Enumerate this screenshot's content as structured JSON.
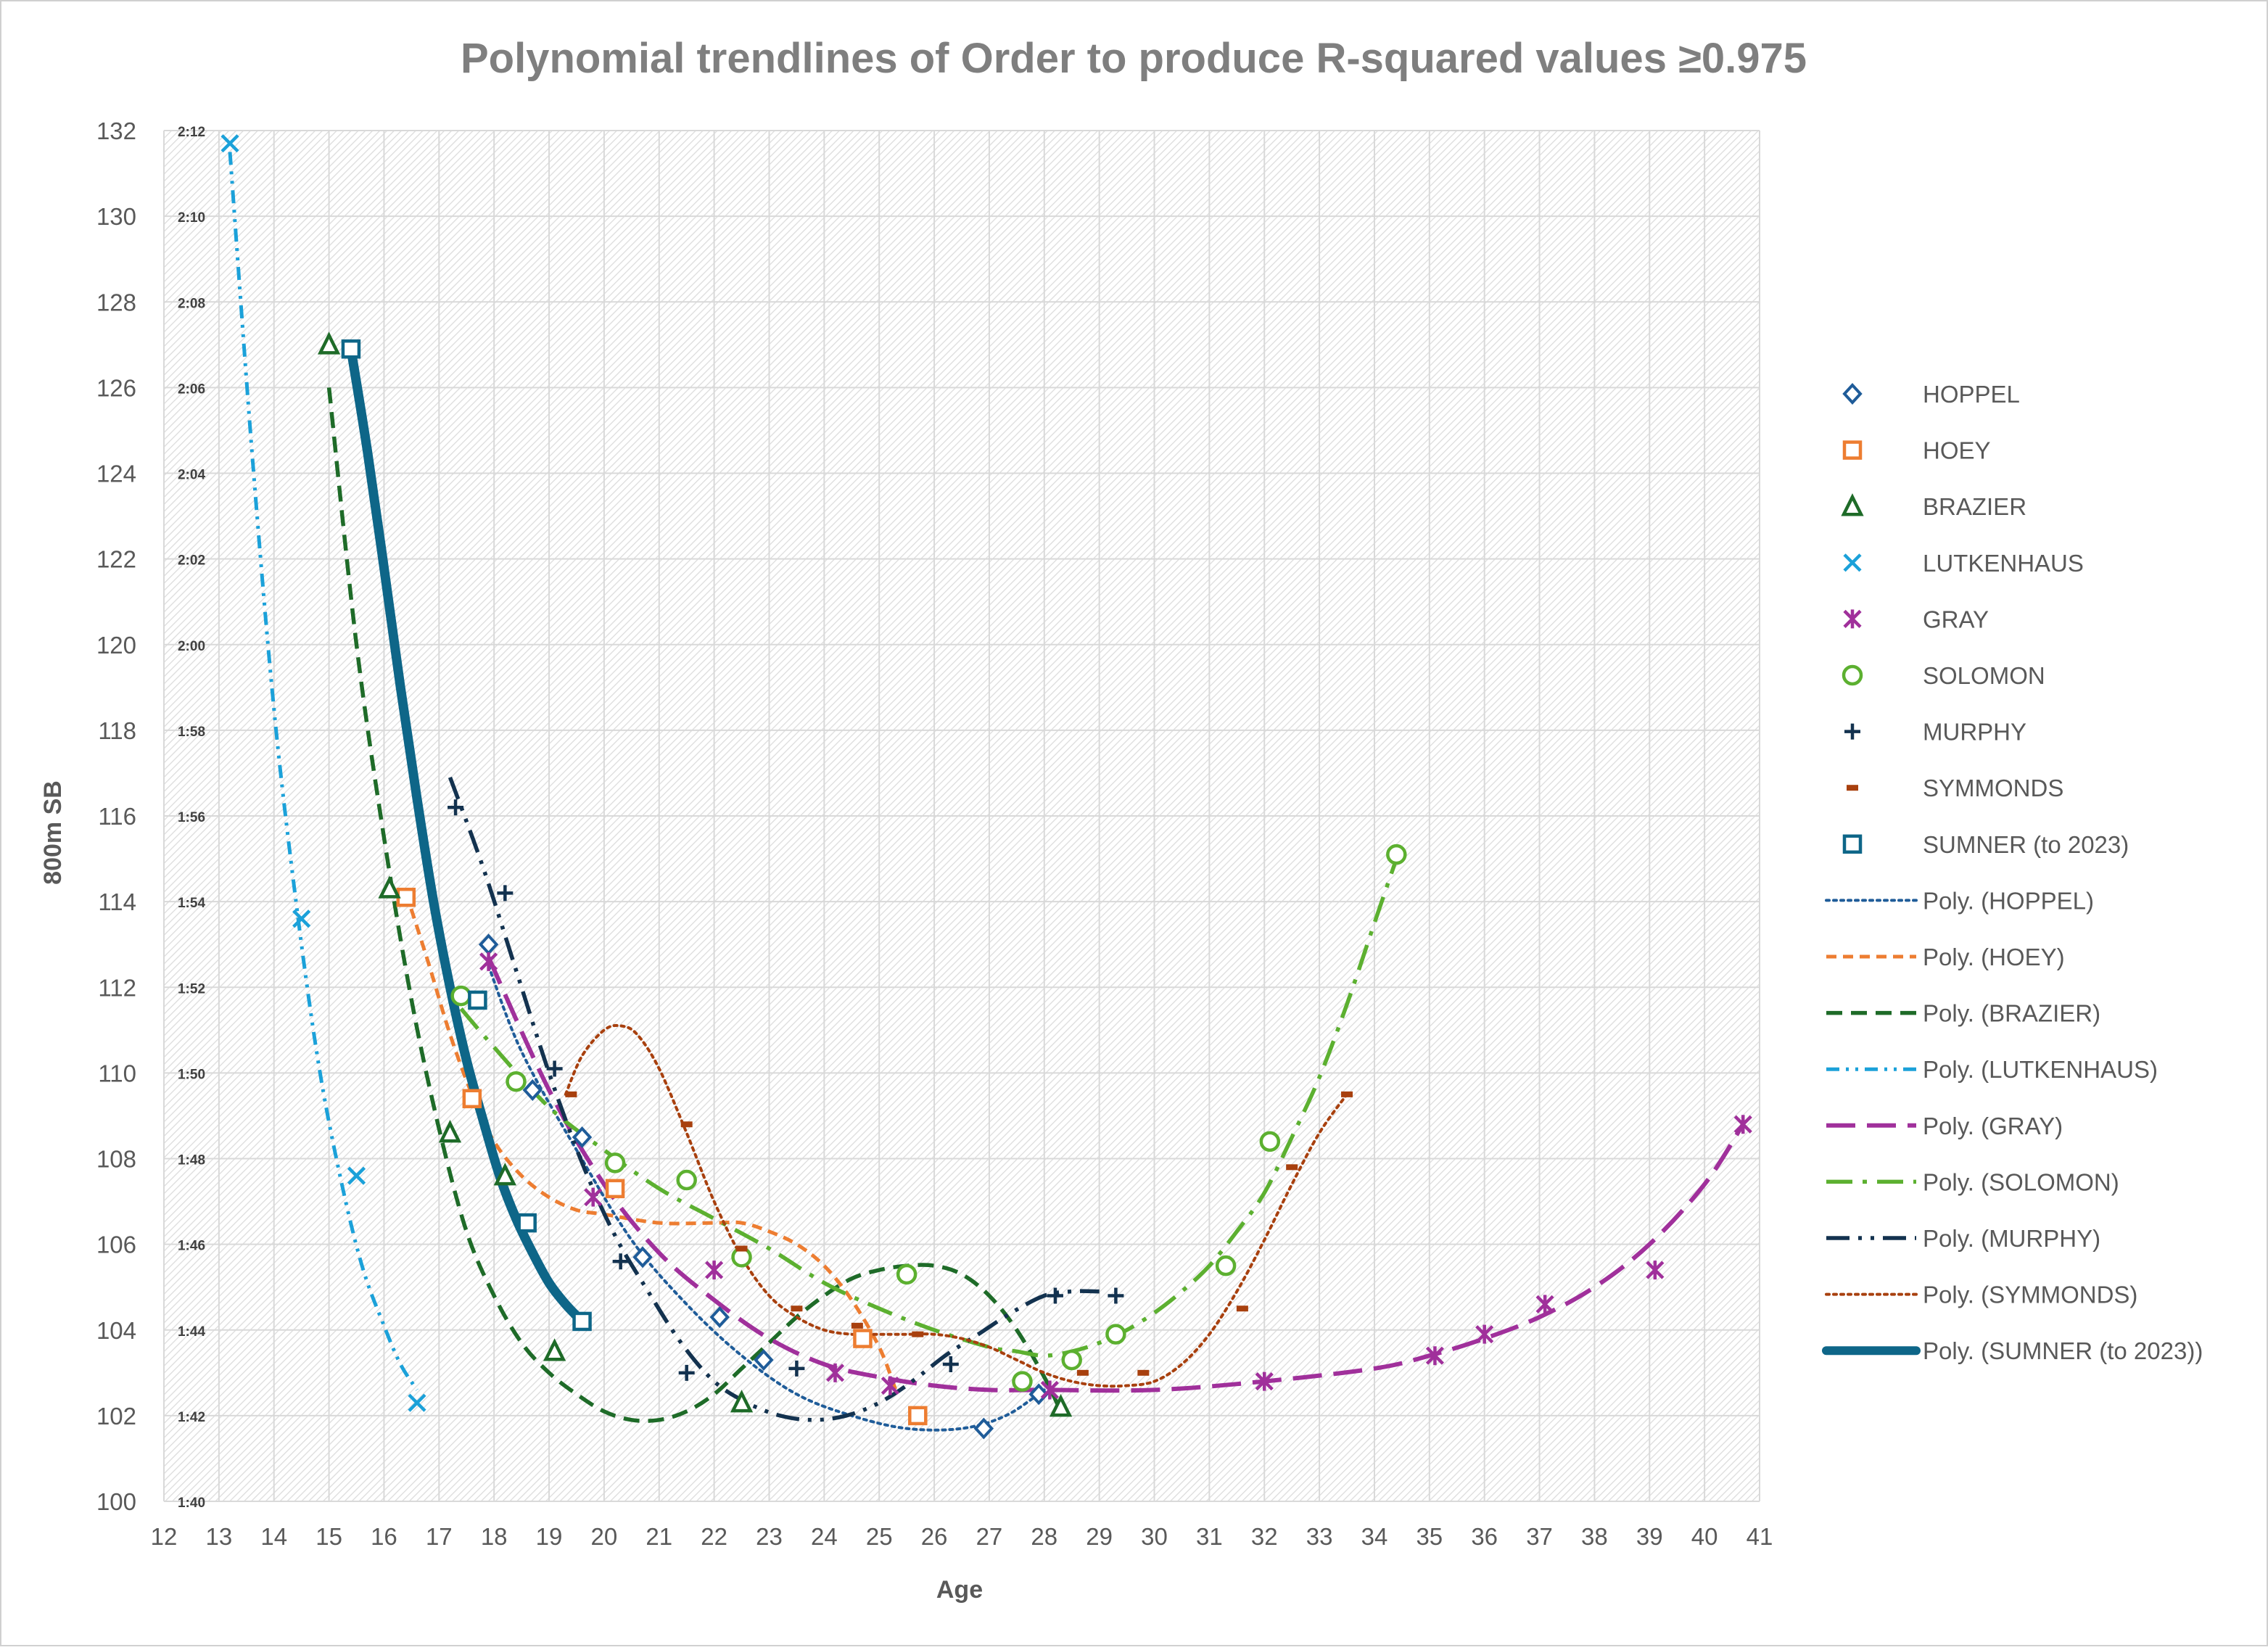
{
  "chart_data": {
    "type": "scatter",
    "title": "Polynomial trendlines of Order to produce R-squared values ≥0.975",
    "xlabel": "Age",
    "ylabel": "800m SB",
    "xlim": [
      12,
      41
    ],
    "ylim": [
      100,
      132
    ],
    "x_ticks": [
      12,
      13,
      14,
      15,
      16,
      17,
      18,
      19,
      20,
      21,
      22,
      23,
      24,
      25,
      26,
      27,
      28,
      29,
      30,
      31,
      32,
      33,
      34,
      35,
      36,
      37,
      38,
      39,
      40,
      41
    ],
    "y_ticks": [
      100,
      102,
      104,
      106,
      108,
      110,
      112,
      114,
      116,
      118,
      120,
      122,
      124,
      126,
      128,
      130,
      132
    ],
    "y_tick_labels": [
      "100",
      "102",
      "104",
      "106",
      "108",
      "110",
      "112",
      "114",
      "116",
      "118",
      "120",
      "122",
      "124",
      "126",
      "128",
      "130",
      "132"
    ],
    "y_time_labels": [
      "1:40",
      "1:42",
      "1:44",
      "1:46",
      "1:48",
      "1:50",
      "1:52",
      "1:54",
      "1:56",
      "1:58",
      "2:00",
      "2:02",
      "2:04",
      "2:06",
      "2:08",
      "2:10",
      "2:12"
    ],
    "grid": true,
    "legend_position": "right",
    "series": [
      {
        "name": "HOPPEL",
        "color": "#1F5C99",
        "marker": "diamond",
        "points": [
          [
            17.9,
            113.0
          ],
          [
            18.7,
            109.6
          ],
          [
            19.6,
            108.5
          ],
          [
            20.7,
            105.7
          ],
          [
            22.1,
            104.3
          ],
          [
            22.9,
            103.3
          ],
          [
            26.9,
            101.7
          ],
          [
            27.9,
            102.5
          ]
        ],
        "trend": [
          [
            17.9,
            112.5
          ],
          [
            18.5,
            110.5
          ],
          [
            19.5,
            108.2
          ],
          [
            20.5,
            106.1
          ],
          [
            21.5,
            104.6
          ],
          [
            22.5,
            103.4
          ],
          [
            23.5,
            102.5
          ],
          [
            24.5,
            102.0
          ],
          [
            25.5,
            101.7
          ],
          [
            26.5,
            101.7
          ],
          [
            27.3,
            102.0
          ],
          [
            28.0,
            102.6
          ]
        ],
        "trend_name": "Poly. (HOPPEL)",
        "trend_style": "dotted"
      },
      {
        "name": "HOEY",
        "color": "#ED7D31",
        "marker": "square",
        "points": [
          [
            16.4,
            114.1
          ],
          [
            17.6,
            109.4
          ],
          [
            20.2,
            107.3
          ],
          [
            24.7,
            103.8
          ],
          [
            25.7,
            102.0
          ]
        ],
        "trend": [
          [
            16.4,
            114.2
          ],
          [
            16.8,
            112.6
          ],
          [
            17.2,
            110.9
          ],
          [
            17.6,
            109.5
          ],
          [
            18.0,
            108.4
          ],
          [
            18.5,
            107.6
          ],
          [
            19.0,
            107.1
          ],
          [
            19.5,
            106.8
          ],
          [
            20.0,
            106.7
          ],
          [
            21.0,
            106.5
          ],
          [
            22.0,
            106.5
          ],
          [
            22.5,
            106.5
          ],
          [
            23.0,
            106.3
          ],
          [
            23.5,
            106.0
          ],
          [
            24.0,
            105.5
          ],
          [
            24.5,
            104.7
          ],
          [
            25.0,
            103.6
          ],
          [
            25.3,
            102.6
          ]
        ],
        "trend_name": "Poly. (HOEY)",
        "trend_style": "short-dash"
      },
      {
        "name": "BRAZIER",
        "color": "#1E6B28",
        "marker": "triangle",
        "points": [
          [
            15.0,
            127.0
          ],
          [
            16.1,
            114.3
          ],
          [
            17.2,
            108.6
          ],
          [
            18.2,
            107.6
          ],
          [
            19.1,
            103.5
          ],
          [
            22.5,
            102.3
          ],
          [
            28.3,
            102.2
          ]
        ],
        "trend": [
          [
            15.0,
            126.0
          ],
          [
            15.5,
            120.0
          ],
          [
            16.0,
            115.5
          ],
          [
            16.5,
            111.7
          ],
          [
            17.0,
            108.7
          ],
          [
            17.5,
            106.3
          ],
          [
            18.0,
            104.8
          ],
          [
            18.5,
            103.7
          ],
          [
            19.0,
            103.0
          ],
          [
            19.5,
            102.5
          ],
          [
            20.0,
            102.1
          ],
          [
            20.5,
            101.9
          ],
          [
            21.0,
            101.9
          ],
          [
            21.5,
            102.1
          ],
          [
            22.0,
            102.5
          ],
          [
            22.5,
            103.1
          ],
          [
            23.0,
            103.7
          ],
          [
            23.5,
            104.3
          ],
          [
            24.0,
            104.8
          ],
          [
            24.5,
            105.2
          ],
          [
            25.0,
            105.4
          ],
          [
            25.5,
            105.5
          ],
          [
            26.0,
            105.5
          ],
          [
            26.5,
            105.3
          ],
          [
            27.0,
            104.8
          ],
          [
            27.5,
            104.0
          ],
          [
            28.0,
            102.9
          ],
          [
            28.3,
            102.1
          ]
        ],
        "trend_name": "Poly. (BRAZIER)",
        "trend_style": "dash"
      },
      {
        "name": "LUTKENHAUS",
        "color": "#1BA1D9",
        "marker": "x",
        "points": [
          [
            13.2,
            131.7
          ],
          [
            14.5,
            113.6
          ],
          [
            15.5,
            107.6
          ],
          [
            16.6,
            102.3
          ]
        ],
        "trend": [
          [
            13.2,
            131.5
          ],
          [
            13.6,
            124.5
          ],
          [
            14.0,
            118.5
          ],
          [
            14.4,
            114.0
          ],
          [
            14.8,
            110.3
          ],
          [
            15.2,
            107.6
          ],
          [
            15.6,
            105.5
          ],
          [
            16.0,
            104.1
          ],
          [
            16.3,
            103.2
          ],
          [
            16.6,
            102.6
          ]
        ],
        "trend_name": "Poly. (LUTKENHAUS)",
        "trend_style": "dash-dot-dot"
      },
      {
        "name": "GRAY",
        "color": "#A0309B",
        "marker": "star",
        "points": [
          [
            17.9,
            112.6
          ],
          [
            19.8,
            107.1
          ],
          [
            22.0,
            105.4
          ],
          [
            24.2,
            103.0
          ],
          [
            25.2,
            102.7
          ],
          [
            28.1,
            102.6
          ],
          [
            32.0,
            102.8
          ],
          [
            35.1,
            103.4
          ],
          [
            36.0,
            103.9
          ],
          [
            37.1,
            104.6
          ],
          [
            39.1,
            105.4
          ],
          [
            40.7,
            108.8
          ]
        ],
        "trend": [
          [
            17.9,
            112.7
          ],
          [
            19.0,
            109.6
          ],
          [
            20.0,
            107.4
          ],
          [
            21.0,
            105.8
          ],
          [
            22.0,
            104.7
          ],
          [
            23.0,
            103.8
          ],
          [
            24.0,
            103.2
          ],
          [
            25.0,
            102.9
          ],
          [
            26.0,
            102.7
          ],
          [
            27.0,
            102.6
          ],
          [
            28.0,
            102.6
          ],
          [
            30.0,
            102.6
          ],
          [
            32.0,
            102.8
          ],
          [
            34.0,
            103.1
          ],
          [
            35.0,
            103.4
          ],
          [
            36.0,
            103.8
          ],
          [
            37.0,
            104.3
          ],
          [
            38.0,
            105.0
          ],
          [
            39.0,
            106.0
          ],
          [
            40.0,
            107.4
          ],
          [
            40.7,
            108.8
          ]
        ],
        "trend_name": "Poly. (GRAY)",
        "trend_style": "long-dash"
      },
      {
        "name": "SOLOMON",
        "color": "#5CB030",
        "marker": "circle",
        "points": [
          [
            17.4,
            111.8
          ],
          [
            18.4,
            109.8
          ],
          [
            20.2,
            107.9
          ],
          [
            21.5,
            107.5
          ],
          [
            22.5,
            105.7
          ],
          [
            25.5,
            105.3
          ],
          [
            27.6,
            102.8
          ],
          [
            28.5,
            103.3
          ],
          [
            29.3,
            103.9
          ],
          [
            31.3,
            105.5
          ],
          [
            32.1,
            108.4
          ],
          [
            34.4,
            115.1
          ]
        ],
        "trend": [
          [
            17.4,
            111.5
          ],
          [
            18.0,
            110.6
          ],
          [
            19.0,
            109.2
          ],
          [
            20.0,
            108.2
          ],
          [
            21.0,
            107.3
          ],
          [
            22.0,
            106.6
          ],
          [
            23.0,
            105.9
          ],
          [
            24.0,
            105.1
          ],
          [
            25.0,
            104.5
          ],
          [
            26.0,
            104.0
          ],
          [
            27.0,
            103.6
          ],
          [
            27.5,
            103.5
          ],
          [
            28.0,
            103.4
          ],
          [
            28.5,
            103.5
          ],
          [
            29.0,
            103.7
          ],
          [
            29.5,
            104.0
          ],
          [
            30.0,
            104.4
          ],
          [
            30.5,
            104.9
          ],
          [
            31.0,
            105.5
          ],
          [
            31.5,
            106.3
          ],
          [
            32.0,
            107.2
          ],
          [
            32.5,
            108.5
          ],
          [
            33.0,
            109.9
          ],
          [
            33.5,
            111.6
          ],
          [
            34.0,
            113.5
          ],
          [
            34.4,
            115.0
          ]
        ],
        "trend_name": "Poly. (SOLOMON)",
        "trend_style": "long-dash-dot"
      },
      {
        "name": "MURPHY",
        "color": "#13324F",
        "marker": "plus",
        "points": [
          [
            17.3,
            116.2
          ],
          [
            18.2,
            114.2
          ],
          [
            19.1,
            110.1
          ],
          [
            20.3,
            105.6
          ],
          [
            21.5,
            103.0
          ],
          [
            23.5,
            103.1
          ],
          [
            26.3,
            103.2
          ],
          [
            28.2,
            104.8
          ],
          [
            29.3,
            104.8
          ]
        ],
        "trend": [
          [
            17.2,
            116.9
          ],
          [
            17.8,
            114.8
          ],
          [
            18.4,
            112.4
          ],
          [
            19.0,
            110.0
          ],
          [
            19.6,
            107.9
          ],
          [
            20.2,
            106.2
          ],
          [
            20.8,
            104.9
          ],
          [
            21.4,
            103.7
          ],
          [
            22.0,
            102.8
          ],
          [
            22.6,
            102.3
          ],
          [
            23.2,
            102.0
          ],
          [
            23.8,
            101.9
          ],
          [
            24.4,
            102.0
          ],
          [
            25.0,
            102.3
          ],
          [
            25.6,
            102.8
          ],
          [
            26.2,
            103.4
          ],
          [
            26.8,
            103.9
          ],
          [
            27.4,
            104.4
          ],
          [
            28.0,
            104.8
          ],
          [
            28.5,
            104.9
          ],
          [
            29.0,
            104.9
          ]
        ],
        "trend_name": "Poly. (MURPHY)",
        "trend_style": "long-dash-dot-dot"
      },
      {
        "name": "SYMMONDS",
        "color": "#A8400E",
        "marker": "dash",
        "points": [
          [
            19.4,
            109.5
          ],
          [
            21.5,
            108.8
          ],
          [
            22.5,
            105.9
          ],
          [
            23.5,
            104.5
          ],
          [
            24.6,
            104.1
          ],
          [
            25.7,
            103.9
          ],
          [
            28.7,
            103.0
          ],
          [
            29.8,
            103.0
          ],
          [
            31.6,
            104.5
          ],
          [
            32.5,
            107.8
          ],
          [
            33.5,
            109.5
          ]
        ],
        "trend": [
          [
            19.3,
            109.5
          ],
          [
            19.6,
            110.4
          ],
          [
            20.0,
            111.0
          ],
          [
            20.3,
            111.1
          ],
          [
            20.6,
            110.9
          ],
          [
            21.0,
            110.1
          ],
          [
            21.5,
            108.6
          ],
          [
            22.0,
            107.0
          ],
          [
            22.5,
            105.7
          ],
          [
            23.0,
            104.8
          ],
          [
            23.5,
            104.3
          ],
          [
            24.0,
            104.0
          ],
          [
            24.5,
            103.9
          ],
          [
            25.0,
            103.9
          ],
          [
            25.5,
            103.9
          ],
          [
            26.0,
            103.9
          ],
          [
            26.5,
            103.8
          ],
          [
            27.0,
            103.6
          ],
          [
            27.5,
            103.3
          ],
          [
            28.0,
            103.0
          ],
          [
            28.5,
            102.8
          ],
          [
            29.0,
            102.7
          ],
          [
            29.5,
            102.7
          ],
          [
            30.0,
            102.8
          ],
          [
            30.5,
            103.2
          ],
          [
            31.0,
            103.9
          ],
          [
            31.5,
            104.9
          ],
          [
            32.0,
            106.1
          ],
          [
            32.5,
            107.4
          ],
          [
            33.0,
            108.6
          ],
          [
            33.5,
            109.5
          ]
        ],
        "trend_name": "Poly. (SYMMONDS)",
        "trend_style": "dotted"
      },
      {
        "name": "SUMNER (to 2023)",
        "color": "#0E6688",
        "marker": "square",
        "points": [
          [
            15.4,
            126.9
          ],
          [
            17.7,
            111.7
          ],
          [
            18.6,
            106.5
          ],
          [
            19.6,
            104.2
          ]
        ],
        "trend": [
          [
            15.4,
            126.9
          ],
          [
            15.7,
            124.5
          ],
          [
            16.0,
            121.8
          ],
          [
            16.3,
            119.0
          ],
          [
            16.6,
            116.4
          ],
          [
            16.9,
            114.0
          ],
          [
            17.2,
            112.0
          ],
          [
            17.5,
            110.3
          ],
          [
            17.8,
            108.9
          ],
          [
            18.1,
            107.6
          ],
          [
            18.4,
            106.6
          ],
          [
            18.7,
            105.8
          ],
          [
            19.0,
            105.1
          ],
          [
            19.3,
            104.6
          ],
          [
            19.6,
            104.2
          ]
        ],
        "trend_name": "Poly. (SUMNER (to 2023))",
        "trend_style": "solid-thick"
      }
    ]
  }
}
